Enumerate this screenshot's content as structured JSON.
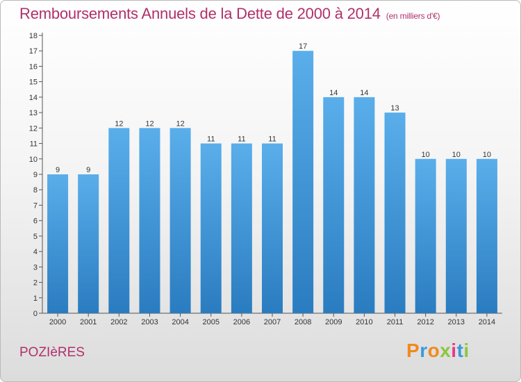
{
  "header": {
    "title": "Remboursements Annuels de la Dette de 2000 à 2014",
    "unit": "(en milliers d'€)"
  },
  "footer": {
    "commune": "POZIèRES",
    "logo_text": "Proxiti",
    "logo_colors": [
      "#f08a1c",
      "#3a9ad9",
      "#f08a1c",
      "#8cc63f",
      "#e8388a",
      "#3a9ad9",
      "#8cc63f"
    ]
  },
  "chart_data": {
    "type": "bar",
    "categories": [
      "2000",
      "2001",
      "2002",
      "2003",
      "2004",
      "2005",
      "2006",
      "2007",
      "2008",
      "2009",
      "2010",
      "2011",
      "2012",
      "2013",
      "2014"
    ],
    "values": [
      9,
      9,
      12,
      12,
      12,
      11,
      11,
      11,
      17,
      14,
      14,
      13,
      10,
      10,
      10
    ],
    "ylim": [
      0,
      18
    ],
    "yticks": [
      0,
      1,
      2,
      3,
      4,
      5,
      6,
      7,
      8,
      9,
      10,
      11,
      12,
      13,
      14,
      15,
      16,
      17,
      18
    ],
    "data_labels": true,
    "grid": false,
    "bar_color_top": "#5aaeea",
    "bar_color_bottom": "#2a7cc0"
  }
}
